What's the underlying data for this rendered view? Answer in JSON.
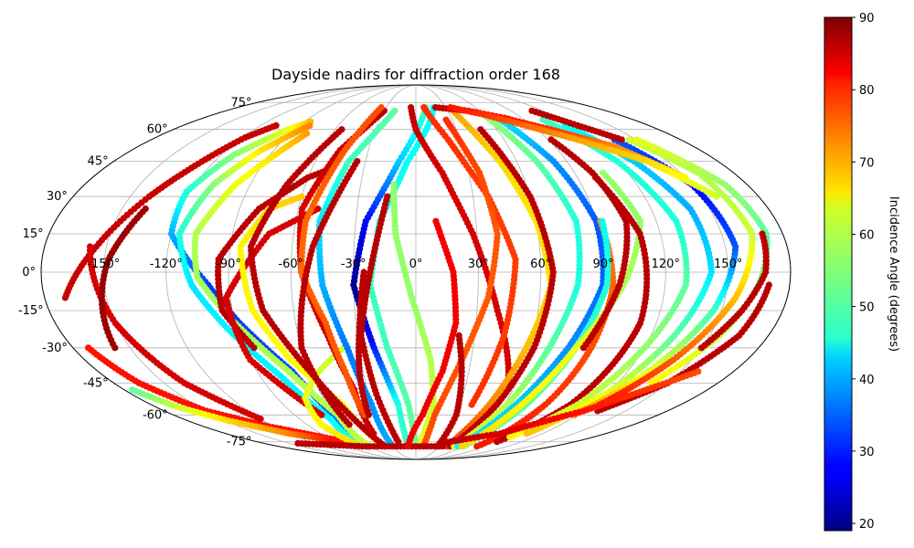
{
  "chart_data": {
    "type": "scatter",
    "projection": "mollweide",
    "title": "Dayside nadirs for diffraction order 168",
    "x_unit": "longitude (degrees)",
    "y_unit": "latitude (degrees)",
    "xlim": [
      -180,
      180
    ],
    "ylim": [
      -90,
      90
    ],
    "grid": true,
    "lon_tick_labels": [
      "-150°",
      "-120°",
      "-90°",
      "-60°",
      "-30°",
      "0°",
      "30°",
      "60°",
      "90°",
      "120°",
      "150°"
    ],
    "lon_tick_values": [
      -150,
      -120,
      -90,
      -60,
      -30,
      0,
      30,
      60,
      90,
      120,
      150
    ],
    "lat_tick_labels": [
      "-75°",
      "-60°",
      "-45°",
      "-30°",
      "-15°",
      "0°",
      "15°",
      "30°",
      "45°",
      "60°",
      "75°"
    ],
    "lat_tick_values": [
      -75,
      -60,
      -45,
      -30,
      -15,
      0,
      15,
      30,
      45,
      60,
      75
    ],
    "colorbar": {
      "label": "Incidence Angle (degrees)",
      "colormap": "jet",
      "range": [
        19,
        90
      ],
      "tick_labels": [
        "20",
        "30",
        "40",
        "50",
        "60",
        "70",
        "80",
        "90"
      ],
      "tick_values": [
        20,
        30,
        40,
        50,
        60,
        70,
        80,
        90
      ]
    },
    "series": [
      {
        "lon": [
          -170,
          -140,
          -118,
          -108
        ],
        "lat": [
          -10,
          30,
          56,
          62
        ],
        "incidence": [
          85,
          85,
          85,
          85
        ]
      },
      {
        "lon": [
          -172,
          -165,
          -150,
          -125,
          -95,
          -80
        ],
        "lat": [
          -30,
          -45,
          -58,
          -66,
          -72,
          -75
        ],
        "incidence": [
          80,
          80,
          80,
          80,
          80,
          80
        ]
      },
      {
        "lon": [
          -158,
          -150,
          -138,
          -120
        ],
        "lat": [
          10,
          -20,
          -45,
          -62
        ],
        "incidence": [
          84,
          84,
          84,
          84
        ]
      },
      {
        "lon": [
          -175,
          -165,
          -148,
          -120,
          -92
        ],
        "lat": [
          -48,
          -56,
          -63,
          -70,
          -74
        ],
        "incidence": [
          52,
          60,
          66,
          72,
          80
        ]
      },
      {
        "lon": [
          -158,
          -148,
          -138
        ],
        "lat": [
          -30,
          5,
          25
        ],
        "incidence": [
          88,
          88,
          88
        ]
      },
      {
        "lon": [
          -62,
          -60,
          -70,
          -88,
          -100,
          -120,
          -122,
          -112,
          -95,
          -85
        ],
        "lat": [
          -78,
          -62,
          -40,
          -20,
          -5,
          15,
          32,
          48,
          60,
          64
        ],
        "incidence": [
          38,
          35,
          33,
          32,
          32,
          40,
          48,
          55,
          62,
          68
        ]
      },
      {
        "lon": [
          -70,
          -66,
          -78,
          -95,
          -108,
          -116,
          -110,
          -98,
          -82
        ],
        "lat": [
          -78,
          -62,
          -42,
          -22,
          -5,
          15,
          35,
          50,
          62
        ],
        "incidence": [
          48,
          46,
          45,
          45,
          44,
          48,
          55,
          65,
          72
        ]
      },
      {
        "lon": [
          -60,
          -58,
          -72,
          -92,
          -105,
          -108,
          -98,
          -85,
          -78
        ],
        "lat": [
          -76,
          -60,
          -40,
          -18,
          -2,
          15,
          35,
          50,
          58
        ],
        "incidence": [
          60,
          58,
          58,
          57,
          57,
          58,
          62,
          66,
          70
        ]
      },
      {
        "lon": [
          -85,
          -95,
          -95,
          -80,
          -60,
          -48
        ],
        "lat": [
          -30,
          -15,
          5,
          25,
          38,
          42
        ],
        "incidence": [
          86,
          86,
          86,
          86,
          86,
          86
        ]
      },
      {
        "lon": [
          -70,
          -90,
          -92,
          -72,
          -50
        ],
        "lat": [
          -60,
          -35,
          -10,
          15,
          25
        ],
        "incidence": [
          84,
          84,
          84,
          84,
          84
        ]
      },
      {
        "lon": [
          -42,
          -50,
          -68,
          -80,
          -85,
          -75,
          -60
        ],
        "lat": [
          -78,
          -55,
          -35,
          -15,
          10,
          25,
          30
        ],
        "incidence": [
          64,
          64,
          63,
          64,
          64,
          66,
          67
        ]
      },
      {
        "lon": [
          -38,
          -55,
          -72,
          -78,
          -72
        ],
        "lat": [
          -30,
          -40,
          -52,
          -65,
          -78
        ],
        "incidence": [
          60,
          60,
          62,
          64,
          66
        ]
      },
      {
        "lon": [
          -40,
          -48,
          -60,
          -75,
          -80,
          -70,
          -55
        ],
        "lat": [
          -78,
          -62,
          -40,
          -15,
          10,
          35,
          60
        ],
        "incidence": [
          86,
          86,
          86,
          86,
          86,
          86,
          86
        ]
      },
      {
        "lon": [
          -40,
          -38,
          -45,
          -55,
          -58,
          -48,
          -30
        ],
        "lat": [
          -70,
          -48,
          -25,
          0,
          25,
          50,
          70
        ],
        "incidence": [
          85,
          85,
          85,
          84,
          84,
          85,
          86
        ]
      },
      {
        "lon": [
          -30,
          -30,
          -36,
          -45,
          -48,
          -40,
          -20
        ],
        "lat": [
          -78,
          -55,
          -30,
          -5,
          20,
          45,
          70
        ],
        "incidence": [
          40,
          38,
          36,
          40,
          44,
          50,
          52
        ]
      },
      {
        "lon": [
          -38,
          -40,
          -45,
          -55,
          -55,
          -45,
          -35
        ],
        "lat": [
          -60,
          -40,
          -20,
          0,
          20,
          50,
          72
        ],
        "incidence": [
          76,
          75,
          75,
          74,
          74,
          75,
          76
        ]
      },
      {
        "lon": [
          -55,
          -60,
          -50,
          -35
        ],
        "lat": [
          -65,
          -30,
          10,
          45
        ],
        "incidence": [
          86,
          86,
          86,
          86
        ]
      },
      {
        "lon": [
          -10,
          -12,
          -22,
          -30,
          -25,
          -10,
          10
        ],
        "lat": [
          -78,
          -55,
          -30,
          -5,
          20,
          45,
          72
        ],
        "incidence": [
          50,
          48,
          30,
          20,
          28,
          42,
          50
        ]
      },
      {
        "lon": [
          0,
          -5,
          -15,
          -22,
          -18,
          -5,
          18
        ],
        "lat": [
          -78,
          -55,
          -30,
          -5,
          20,
          45,
          72
        ],
        "incidence": [
          54,
          52,
          50,
          50,
          48,
          46,
          46
        ]
      },
      {
        "lon": [
          5,
          12,
          8,
          -2,
          -10,
          -12
        ],
        "lat": [
          -78,
          -55,
          -35,
          -10,
          15,
          35
        ],
        "incidence": [
          62,
          60,
          58,
          56,
          56,
          56
        ]
      },
      {
        "lon": [
          -5,
          0,
          15,
          28,
          40,
          55
        ],
        "lat": [
          72,
          60,
          40,
          15,
          -15,
          -45
        ],
        "incidence": [
          86,
          85,
          84,
          84,
          84,
          84
        ]
      },
      {
        "lon": [
          8,
          22,
          38,
          48,
          45,
          38
        ],
        "lat": [
          72,
          55,
          30,
          5,
          -25,
          -55
        ],
        "incidence": [
          78,
          78,
          77,
          77,
          77,
          78
        ]
      },
      {
        "lon": [
          10,
          14,
          25,
          35,
          40,
          36,
          25
        ],
        "lat": [
          -78,
          -60,
          -35,
          -10,
          15,
          40,
          65
        ],
        "incidence": [
          76,
          76,
          75,
          75,
          75,
          76,
          78
        ]
      },
      {
        "lon": [
          28,
          30,
          26,
          22
        ],
        "lat": [
          -78,
          -60,
          -40,
          -25
        ],
        "incidence": [
          86,
          86,
          86,
          86
        ]
      },
      {
        "lon": [
          40,
          50,
          58,
          65,
          60,
          50,
          35
        ],
        "lat": [
          -78,
          -55,
          -30,
          -5,
          20,
          45,
          70
        ],
        "incidence": [
          78,
          72,
          68,
          66,
          65,
          66,
          70
        ]
      },
      {
        "lon": [
          45,
          55,
          62,
          66,
          60,
          48
        ],
        "lat": [
          -78,
          -55,
          -30,
          0,
          30,
          60
        ],
        "incidence": [
          86,
          86,
          86,
          86,
          86,
          86
        ]
      },
      {
        "lon": [
          50,
          62,
          70,
          78,
          80,
          72,
          60
        ],
        "lat": [
          -78,
          -55,
          -30,
          -5,
          20,
          45,
          68
        ],
        "incidence": [
          62,
          58,
          52,
          48,
          48,
          52,
          56
        ]
      },
      {
        "lon": [
          55,
          68,
          80,
          90,
          90,
          82,
          70
        ],
        "lat": [
          -78,
          -55,
          -30,
          -5,
          20,
          45,
          65
        ],
        "incidence": [
          45,
          42,
          38,
          35,
          34,
          38,
          44
        ]
      },
      {
        "lon": [
          80,
          88,
          92,
          95,
          92
        ],
        "lat": [
          -78,
          -55,
          -30,
          -5,
          20
        ],
        "incidence": [
          80,
          78,
          76,
          74,
          72
        ]
      },
      {
        "lon": [
          62,
          75,
          84,
          92,
          93
        ],
        "lat": [
          -78,
          -55,
          -30,
          -5,
          20
        ],
        "incidence": [
          54,
          52,
          50,
          48,
          46
        ]
      },
      {
        "lon": [
          60,
          72,
          84,
          100,
          112,
          106
        ],
        "lat": [
          -78,
          -55,
          -30,
          -5,
          20,
          40
        ],
        "incidence": [
          66,
          64,
          62,
          58,
          56,
          56
        ]
      },
      {
        "lon": [
          88,
          98,
          105,
          100,
          92
        ],
        "lat": [
          -30,
          -5,
          20,
          40,
          55
        ],
        "incidence": [
          86,
          86,
          86,
          86,
          86
        ]
      },
      {
        "lon": [
          92,
          105,
          112,
          110,
          100
        ],
        "lat": [
          -75,
          -55,
          -20,
          15,
          38
        ],
        "incidence": [
          86,
          86,
          86,
          86,
          86
        ]
      },
      {
        "lon": [
          95,
          110,
          120,
          130,
          130,
          120,
          105
        ],
        "lat": [
          -72,
          -55,
          -30,
          -5,
          20,
          45,
          65
        ],
        "incidence": [
          64,
          60,
          56,
          52,
          48,
          48,
          50
        ]
      },
      {
        "lon": [
          105,
          120,
          132,
          142,
          140,
          130,
          115
        ],
        "lat": [
          -70,
          -50,
          -25,
          0,
          25,
          45,
          62
        ],
        "incidence": [
          68,
          62,
          52,
          44,
          40,
          42,
          46
        ]
      },
      {
        "lon": [
          118,
          132,
          146,
          155,
          150,
          135
        ],
        "lat": [
          -60,
          -40,
          -15,
          10,
          35,
          55
        ],
        "incidence": [
          72,
          62,
          50,
          34,
          28,
          34
        ]
      },
      {
        "lon": [
          125,
          140,
          155,
          165,
          160,
          145
        ],
        "lat": [
          -55,
          -35,
          -10,
          15,
          40,
          55
        ],
        "incidence": [
          80,
          75,
          68,
          60,
          58,
          60
        ]
      },
      {
        "lon": [
          140,
          155,
          165,
          172,
          168,
          150
        ],
        "lat": [
          -45,
          -25,
          -5,
          15,
          35,
          55
        ],
        "incidence": [
          64,
          60,
          55,
          52,
          56,
          62
        ]
      },
      {
        "lon": [
          150,
          160,
          168,
          170
        ],
        "lat": [
          -30,
          -15,
          0,
          15
        ],
        "incidence": [
          86,
          86,
          86,
          86
        ]
      },
      {
        "lon": [
          170,
          165,
          150,
          130
        ],
        "lat": [
          -5,
          -25,
          -45,
          -58
        ],
        "incidence": [
          86,
          86,
          86,
          86
        ]
      },
      {
        "lon": [
          110,
          125,
          140
        ],
        "lat": [
          70,
          62,
          55
        ],
        "incidence": [
          86,
          86,
          86
        ]
      },
      {
        "lon": [
          20,
          50,
          75,
          100,
          128,
          150
        ],
        "lat": [
          72,
          70,
          66,
          60,
          52,
          38
        ],
        "incidence": [
          86,
          82,
          80,
          78,
          72,
          64
        ]
      },
      {
        "lon": [
          35,
          60,
          85,
          110,
          138,
          158
        ],
        "lat": [
          72,
          68,
          62,
          55,
          45,
          30
        ],
        "incidence": [
          80,
          78,
          74,
          70,
          66,
          60
        ]
      },
      {
        "lon": [
          -140,
          -105,
          -70,
          -35,
          0,
          35
        ],
        "lat": [
          -76,
          -77,
          -78,
          -78,
          -78,
          -78
        ],
        "incidence": [
          86,
          86,
          86,
          86,
          86,
          86
        ]
      },
      {
        "lon": [
          30,
          80,
          120,
          160
        ],
        "lat": [
          -76,
          -70,
          -58,
          -40
        ],
        "incidence": [
          86,
          84,
          80,
          76
        ]
      },
      {
        "lon": [
          -10,
          5,
          15,
          20,
          18,
          10
        ],
        "lat": [
          -78,
          -60,
          -40,
          -20,
          0,
          20
        ],
        "incidence": [
          82,
          82,
          82,
          82,
          82,
          82
        ]
      },
      {
        "lon": [
          -20,
          -25,
          -28,
          -22,
          -15
        ],
        "lat": [
          -75,
          -50,
          -25,
          0,
          30
        ],
        "incidence": [
          86,
          86,
          86,
          86,
          86
        ]
      },
      {
        "lon": [
          -35,
          -32,
          -28,
          -25
        ],
        "lat": [
          -60,
          -40,
          -20,
          0
        ],
        "incidence": [
          86,
          86,
          86,
          86
        ]
      }
    ]
  }
}
